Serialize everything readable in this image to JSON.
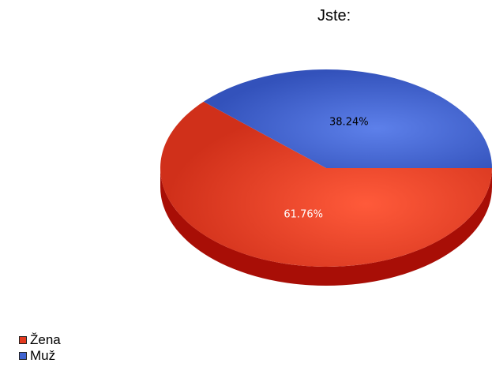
{
  "chart_data": {
    "type": "pie",
    "title": "Jste:",
    "categories": [
      "Žena",
      "Muž"
    ],
    "values": [
      61.76,
      38.24
    ],
    "data_labels": [
      "61.76%",
      "38.24%"
    ],
    "colors": [
      "#e33a1f",
      "#3f63d0"
    ],
    "legend_position": "bottom-left",
    "style": "3d"
  }
}
